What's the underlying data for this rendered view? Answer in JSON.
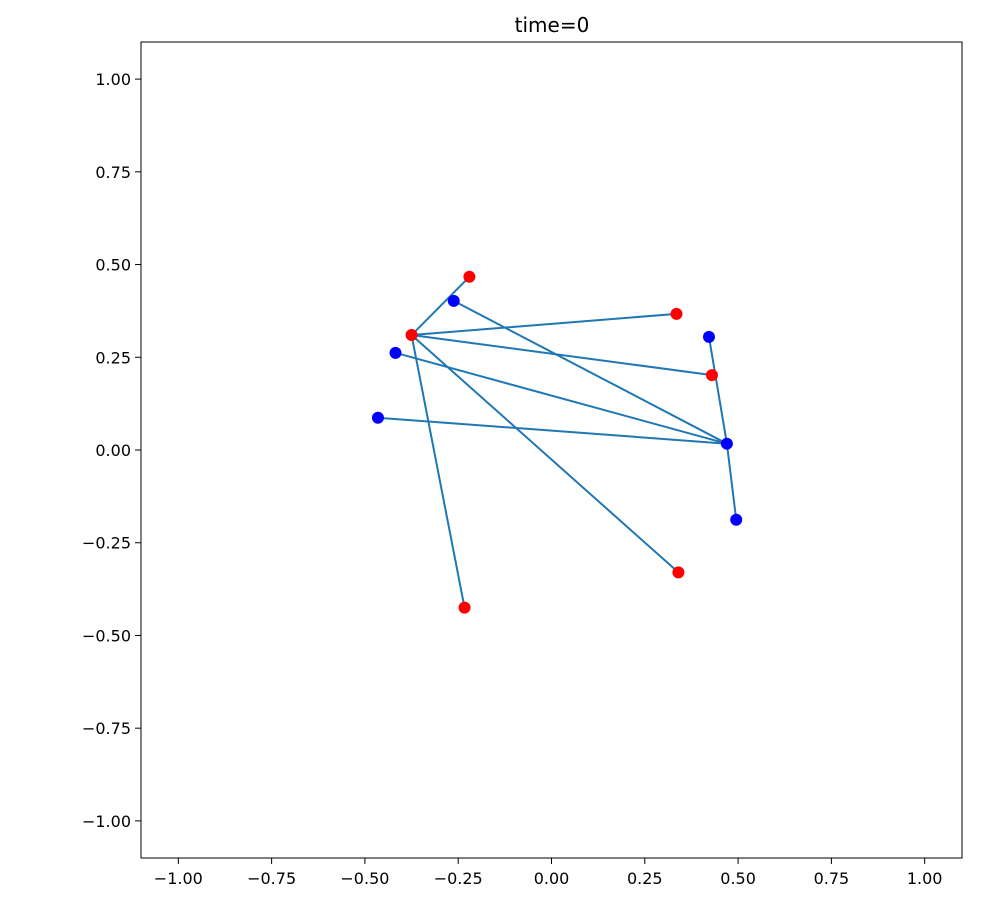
{
  "chart_data": {
    "type": "scatter",
    "title": "time=0",
    "xlabel": "",
    "ylabel": "",
    "xlim": [
      -1.1,
      1.1
    ],
    "ylim": [
      -1.1,
      1.1
    ],
    "grid": false,
    "x_ticks": [
      -1.0,
      -0.75,
      -0.5,
      -0.25,
      0.0,
      0.25,
      0.5,
      0.75,
      1.0
    ],
    "y_ticks": [
      -1.0,
      -0.75,
      -0.5,
      -0.25,
      0.0,
      0.25,
      0.5,
      0.75,
      1.0
    ],
    "x_tick_labels": [
      "−1.00",
      "−0.75",
      "−0.50",
      "−0.25",
      "0.00",
      "0.25",
      "0.50",
      "0.75",
      "1.00"
    ],
    "y_tick_labels": [
      "−1.00",
      "−0.75",
      "−0.50",
      "−0.25",
      "0.00",
      "0.25",
      "0.50",
      "0.75",
      "1.00"
    ],
    "colors": {
      "red_points": "#ff0000",
      "blue_points": "#0000ff",
      "edges": "#1f77b4"
    },
    "series": [
      {
        "color": "red",
        "points": [
          {
            "x": -0.375,
            "y": 0.31
          },
          {
            "x": -0.22,
            "y": 0.467
          },
          {
            "x": 0.335,
            "y": 0.367
          },
          {
            "x": 0.43,
            "y": 0.202
          },
          {
            "x": 0.34,
            "y": -0.33
          },
          {
            "x": -0.233,
            "y": -0.425
          }
        ]
      },
      {
        "color": "blue",
        "points": [
          {
            "x": -0.262,
            "y": 0.402
          },
          {
            "x": 0.422,
            "y": 0.305
          },
          {
            "x": -0.418,
            "y": 0.262
          },
          {
            "x": -0.465,
            "y": 0.087
          },
          {
            "x": 0.47,
            "y": 0.017
          },
          {
            "x": 0.495,
            "y": -0.188
          }
        ]
      }
    ],
    "edges": [
      {
        "from": [
          -0.375,
          0.31
        ],
        "to": [
          -0.22,
          0.467
        ]
      },
      {
        "from": [
          -0.375,
          0.31
        ],
        "to": [
          0.335,
          0.367
        ]
      },
      {
        "from": [
          -0.375,
          0.31
        ],
        "to": [
          0.43,
          0.202
        ]
      },
      {
        "from": [
          -0.375,
          0.31
        ],
        "to": [
          0.34,
          -0.33
        ]
      },
      {
        "from": [
          -0.375,
          0.31
        ],
        "to": [
          -0.233,
          -0.425
        ]
      },
      {
        "from": [
          0.47,
          0.017
        ],
        "to": [
          -0.262,
          0.402
        ]
      },
      {
        "from": [
          0.47,
          0.017
        ],
        "to": [
          0.422,
          0.305
        ]
      },
      {
        "from": [
          0.47,
          0.017
        ],
        "to": [
          -0.418,
          0.262
        ]
      },
      {
        "from": [
          0.47,
          0.017
        ],
        "to": [
          -0.465,
          0.087
        ]
      },
      {
        "from": [
          0.47,
          0.017
        ],
        "to": [
          0.495,
          -0.188
        ]
      }
    ]
  }
}
